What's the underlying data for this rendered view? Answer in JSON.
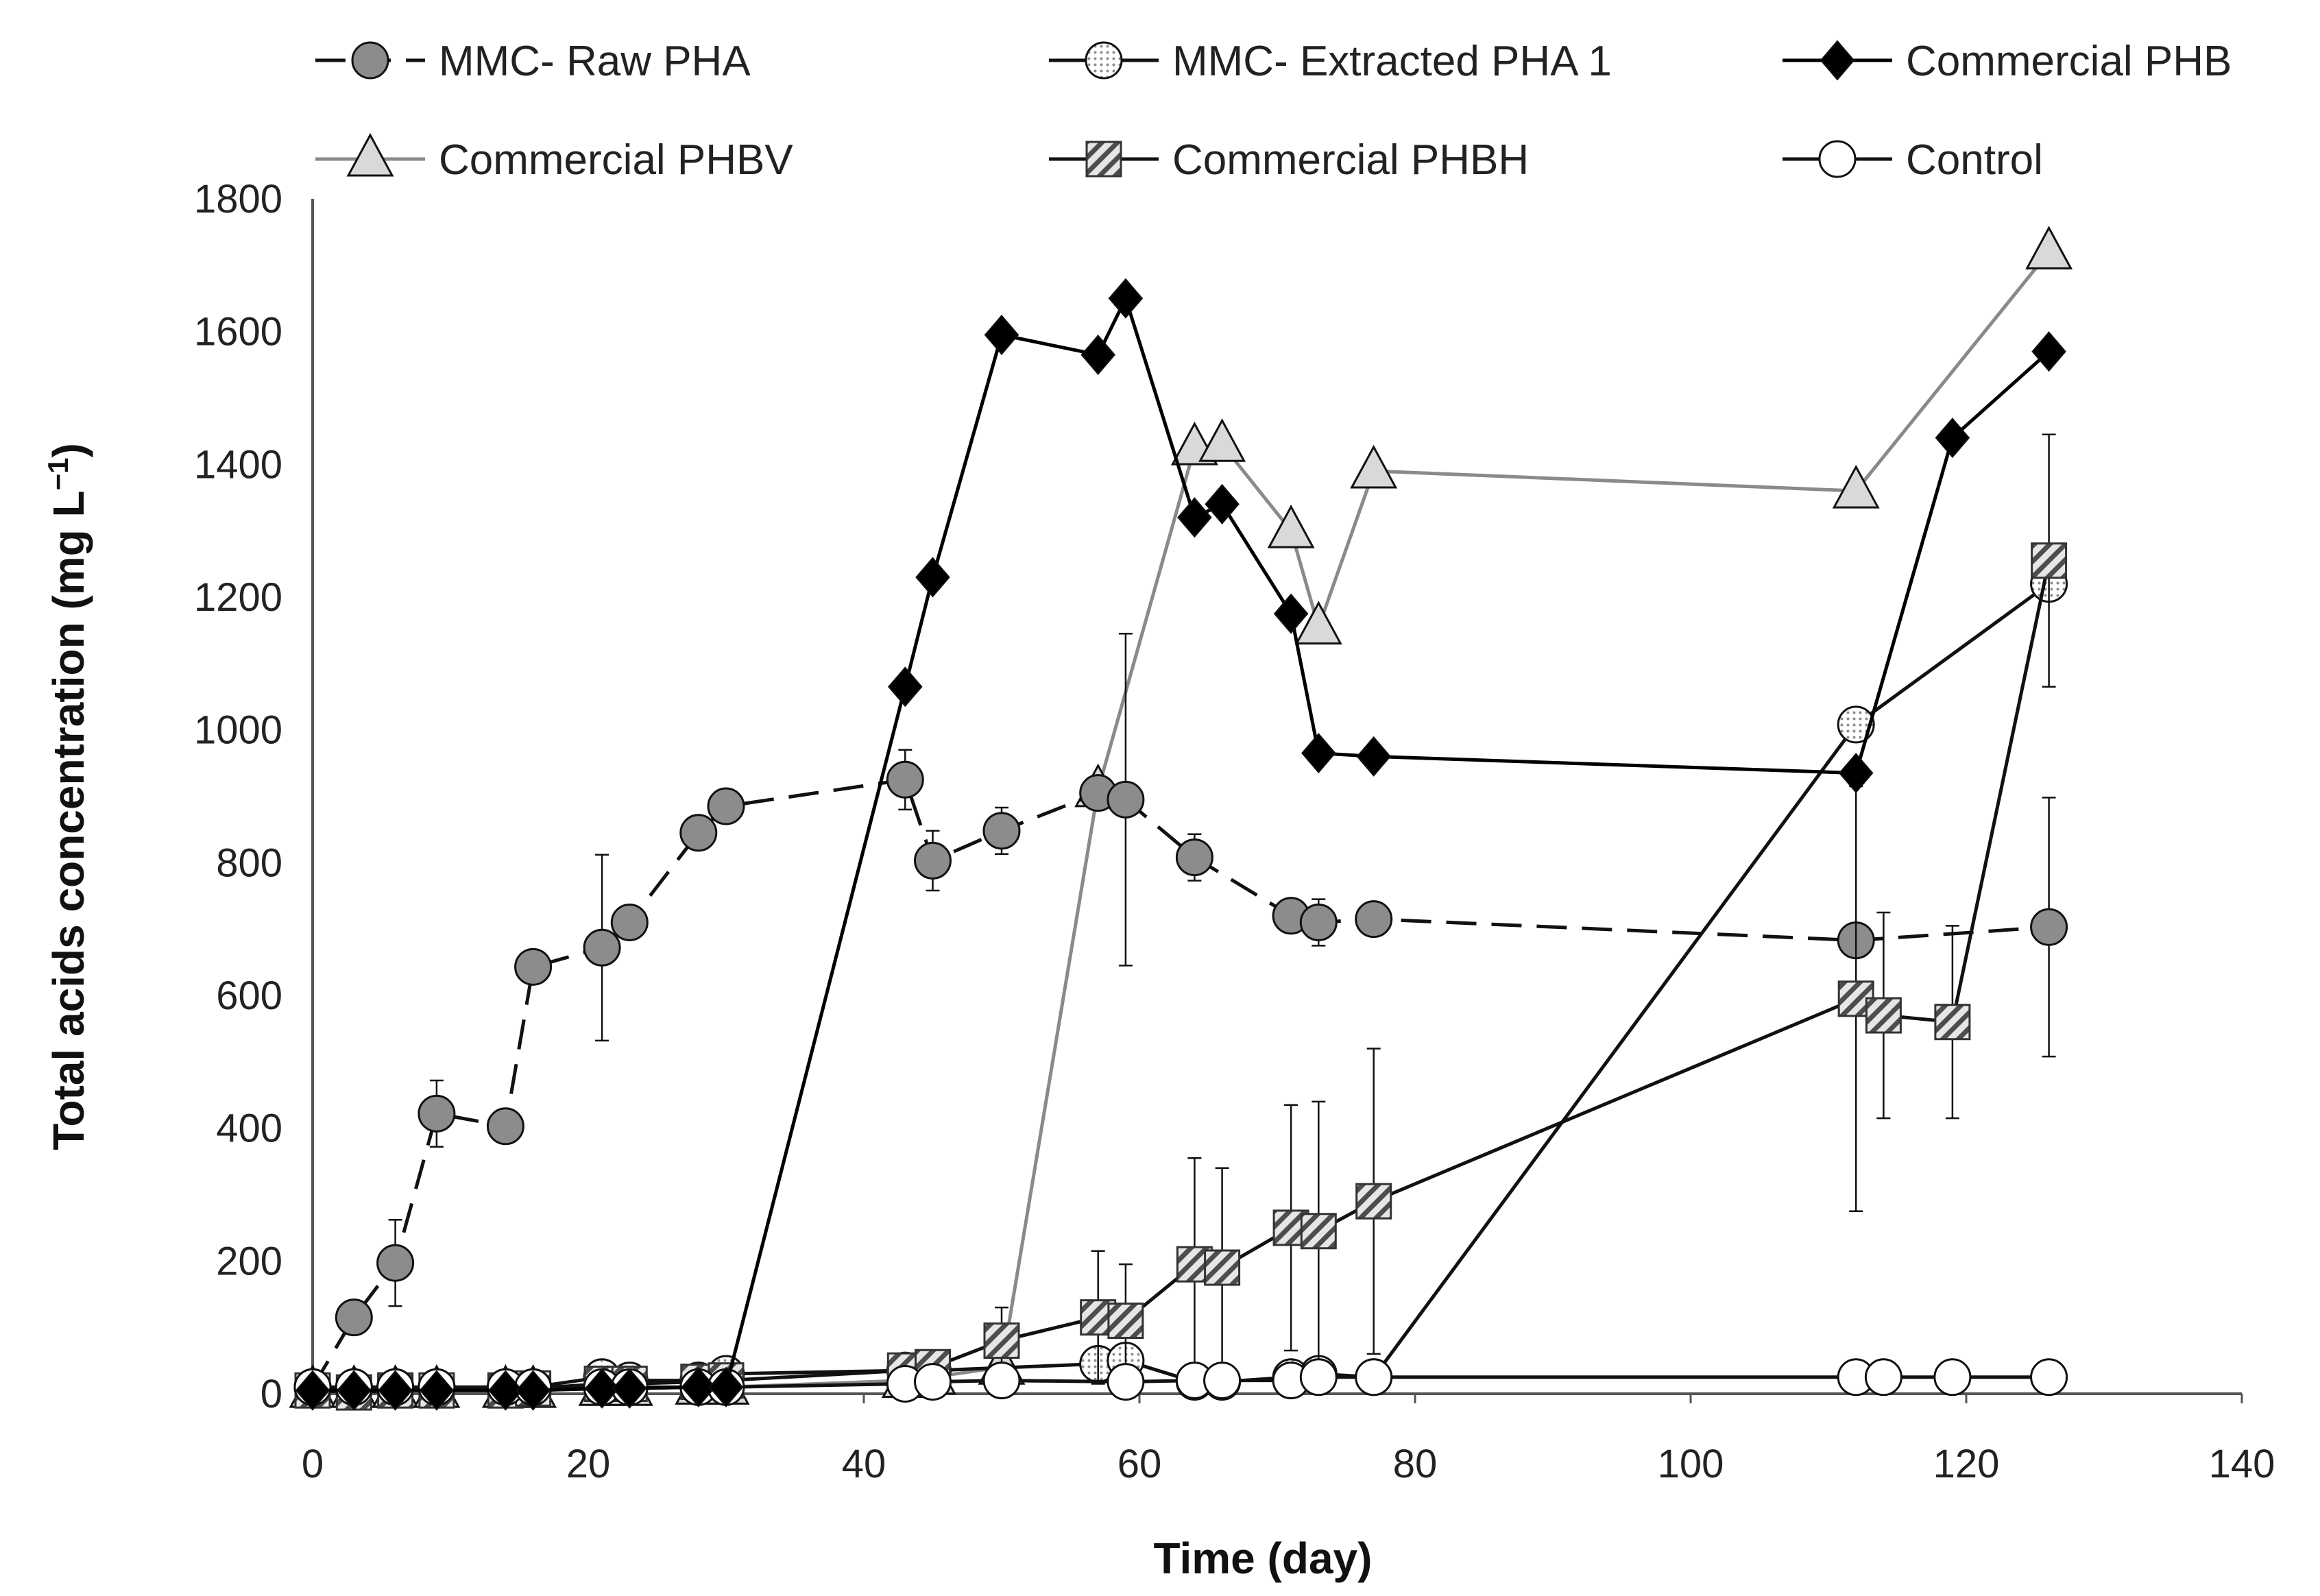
{
  "chart_data": {
    "type": "line",
    "title": "",
    "xlabel": "Time (day)",
    "ylabel": "Total acids concentration (mg L",
    "ylabel_sup": "−1",
    "ylabel_end": ")",
    "xlim": [
      0,
      140
    ],
    "ylim": [
      0,
      1800
    ],
    "xticks": [
      0,
      20,
      40,
      60,
      80,
      100,
      120,
      140
    ],
    "yticks": [
      0,
      200,
      400,
      600,
      800,
      1000,
      1200,
      1400,
      1600,
      1800
    ],
    "grid": false,
    "legend_position": "top",
    "series": [
      {
        "name": "Commercial PHBV",
        "marker": "triangle",
        "fill": "#d9d9d9",
        "line": "#8a8a8a",
        "dash": "solid",
        "x": [
          0,
          3,
          6,
          9,
          14,
          16,
          21,
          23,
          28,
          30,
          43,
          45,
          50,
          57,
          64,
          66,
          71,
          73,
          77,
          112,
          126
        ],
        "y": [
          5,
          5,
          5,
          5,
          5,
          5,
          8,
          8,
          10,
          10,
          20,
          25,
          40,
          910,
          1425,
          1430,
          1300,
          1155,
          1390,
          1360,
          1720
        ]
      },
      {
        "name": "MMC- Raw PHA",
        "marker": "circle",
        "fill": "#8c8c8c",
        "line": "#111111",
        "dash": "dashed",
        "x": [
          0,
          3,
          6,
          9,
          14,
          16,
          21,
          23,
          28,
          30,
          43,
          45,
          50,
          57,
          59,
          64,
          71,
          73,
          77,
          112,
          126
        ],
        "y": [
          10,
          115,
          197,
          422,
          403,
          643,
          672,
          710,
          845,
          885,
          925,
          803,
          848,
          905,
          895,
          808,
          720,
          710,
          715,
          683,
          703
        ],
        "error": [
          0,
          0,
          65,
          50,
          0,
          0,
          140,
          0,
          0,
          0,
          45,
          45,
          35,
          0,
          250,
          35,
          0,
          35,
          0,
          0,
          195
        ]
      },
      {
        "name": "MMC- Extracted PHA 1",
        "marker": "circle-dotted",
        "fill": "#ffffff",
        "line": "#111111",
        "dash": "solid",
        "x": [
          0,
          3,
          6,
          9,
          14,
          16,
          21,
          23,
          28,
          30,
          43,
          45,
          57,
          59,
          64,
          66,
          71,
          73,
          77,
          112,
          126
        ],
        "y": [
          10,
          10,
          10,
          10,
          10,
          10,
          25,
          20,
          20,
          30,
          35,
          35,
          45,
          50,
          18,
          18,
          25,
          30,
          25,
          1008,
          1220
        ]
      },
      {
        "name": "Commercial PHBH",
        "marker": "square-hatched",
        "fill": "#cfcfcf",
        "line": "#111111",
        "dash": "solid",
        "x": [
          0,
          3,
          6,
          9,
          14,
          16,
          21,
          23,
          28,
          30,
          43,
          45,
          50,
          57,
          59,
          64,
          66,
          71,
          73,
          77,
          112,
          114,
          119,
          126
        ],
        "y": [
          5,
          2,
          5,
          5,
          5,
          8,
          15,
          15,
          18,
          20,
          35,
          40,
          80,
          115,
          110,
          195,
          190,
          250,
          245,
          290,
          595,
          570,
          560,
          1255
        ],
        "error": [
          0,
          0,
          0,
          0,
          0,
          0,
          0,
          0,
          0,
          0,
          0,
          0,
          50,
          100,
          85,
          160,
          150,
          185,
          195,
          230,
          320,
          155,
          145,
          190
        ]
      },
      {
        "name": "Control",
        "marker": "circle",
        "fill": "#ffffff",
        "line": "#111111",
        "dash": "solid",
        "x": [
          0,
          3,
          6,
          9,
          14,
          16,
          21,
          23,
          28,
          30,
          43,
          45,
          50,
          59,
          64,
          66,
          71,
          73,
          77,
          112,
          114,
          119,
          126
        ],
        "y": [
          10,
          10,
          10,
          10,
          10,
          10,
          10,
          10,
          10,
          10,
          15,
          18,
          20,
          18,
          20,
          20,
          20,
          25,
          25,
          25,
          25,
          25,
          25
        ],
        "error": [
          0,
          0,
          0,
          0,
          0,
          0,
          0,
          0,
          0,
          0,
          0,
          0,
          0,
          0,
          0,
          0,
          0,
          0,
          0,
          10,
          10,
          10,
          10
        ]
      },
      {
        "name": "Commercial PHB",
        "marker": "diamond",
        "fill": "#000000",
        "line": "#000000",
        "dash": "solid",
        "x": [
          0,
          3,
          6,
          9,
          14,
          16,
          21,
          23,
          28,
          30,
          43,
          45,
          50,
          57,
          59,
          64,
          66,
          71,
          73,
          77,
          112,
          119,
          126
        ],
        "y": [
          5,
          5,
          5,
          5,
          5,
          5,
          8,
          8,
          10,
          10,
          1065,
          1230,
          1595,
          1565,
          1650,
          1320,
          1340,
          1175,
          965,
          960,
          935,
          1440,
          1570
        ]
      }
    ],
    "legend": [
      "MMC- Raw PHA",
      "MMC- Extracted PHA 1",
      "Commercial PHB",
      "Commercial PHBV",
      "Commercial PHBH",
      "Control"
    ]
  }
}
